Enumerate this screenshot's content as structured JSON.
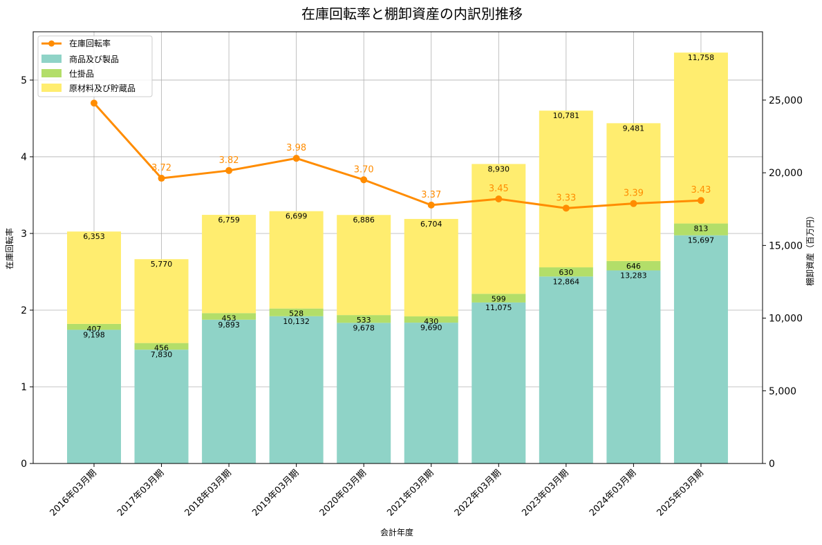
{
  "chart_data": {
    "type": "bar",
    "title": "在庫回転率と棚卸資産の内訳別推移",
    "xlabel": "会計年度",
    "ylabel_left": "在庫回転率",
    "ylabel_right": "棚卸資産（百万円）",
    "categories": [
      "2016年03月期",
      "2017年03月期",
      "2018年03月期",
      "2019年03月期",
      "2020年03月期",
      "2021年03月期",
      "2022年03月期",
      "2023年03月期",
      "2024年03月期",
      "2025年03月期"
    ],
    "stacked_series": [
      {
        "name": "商品及び製品",
        "color": "#8fd3c7",
        "values": [
          9198,
          7830,
          9893,
          10132,
          9678,
          9690,
          11075,
          12864,
          13283,
          15697
        ],
        "labels": [
          "9,198",
          "7,830",
          "9,893",
          "10,132",
          "9,678",
          "9,690",
          "11,075",
          "12,864",
          "13,283",
          "15,697"
        ]
      },
      {
        "name": "仕掛品",
        "color": "#b3de69",
        "values": [
          407,
          456,
          453,
          528,
          533,
          430,
          599,
          630,
          646,
          813
        ],
        "labels": [
          "407",
          "456",
          "453",
          "528",
          "533",
          "430",
          "599",
          "630",
          "646",
          "813"
        ]
      },
      {
        "name": "原材料及び貯蔵品",
        "color": "#ffed6f",
        "values": [
          6353,
          5770,
          6759,
          6699,
          6886,
          6704,
          8930,
          10781,
          9481,
          11758
        ],
        "labels": [
          "6,353",
          "5,770",
          "6,759",
          "6,699",
          "6,886",
          "6,704",
          "8,930",
          "10,781",
          "9,481",
          "11,758"
        ]
      }
    ],
    "line_series": {
      "name": "在庫回転率",
      "color": "#FF8C00",
      "values": [
        4.7,
        3.72,
        3.82,
        3.98,
        3.7,
        3.37,
        3.45,
        3.33,
        3.39,
        3.43
      ],
      "labels": [
        "",
        "3.72",
        "3.82",
        "3.98",
        "3.70",
        "3.37",
        "3.45",
        "3.33",
        "3.39",
        "3.43"
      ]
    },
    "ylim_left": [
      0,
      5.63
    ],
    "yticks_left": [
      "0",
      "1",
      "2",
      "3",
      "4",
      "5"
    ],
    "ylim_right": [
      0,
      29700
    ],
    "yticks_right": [
      "0",
      "5,000",
      "10,000",
      "15,000",
      "20,000",
      "25,000"
    ],
    "grid": true,
    "legend_position": "top-left"
  }
}
